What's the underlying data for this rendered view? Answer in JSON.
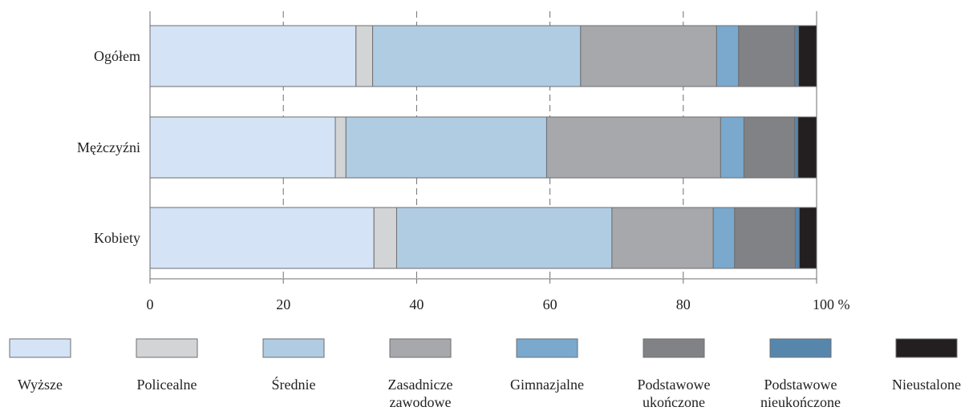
{
  "chart_data": {
    "type": "bar",
    "orientation": "horizontal",
    "stacked": true,
    "title": "",
    "xlabel": "",
    "ylabel": "",
    "xlim": [
      0,
      100
    ],
    "x_ticks": [
      0,
      20,
      40,
      60,
      80,
      100
    ],
    "x_tick_labels": [
      "0",
      "20",
      "40",
      "60",
      "80",
      "100 %"
    ],
    "categories": [
      "Ogółem",
      "Mężczyźni",
      "Kobiety"
    ],
    "series": [
      {
        "name": "Wyższe",
        "name_lines": [
          "Wyższe"
        ],
        "color": "#d4e3f5",
        "values": [
          30.9,
          27.8,
          33.6
        ]
      },
      {
        "name": "Policealne",
        "name_lines": [
          "Policealne"
        ],
        "color": "#d3d4d6",
        "values": [
          2.5,
          1.6,
          3.4
        ]
      },
      {
        "name": "Średnie",
        "name_lines": [
          "Średnie"
        ],
        "color": "#b0cce3",
        "values": [
          31.2,
          30.1,
          32.3
        ]
      },
      {
        "name": "Zasadnicze zawodowe",
        "name_lines": [
          "Zasadnicze",
          "zawodowe"
        ],
        "color": "#a7a8ab",
        "values": [
          20.4,
          26.1,
          15.2
        ]
      },
      {
        "name": "Gimnazjalne",
        "name_lines": [
          "Gimnazjalne"
        ],
        "color": "#7aa9cd",
        "values": [
          3.3,
          3.5,
          3.2
        ]
      },
      {
        "name": "Podstawowe ukończone",
        "name_lines": [
          "Podstawowe",
          "ukończone"
        ],
        "color": "#818285",
        "values": [
          8.4,
          7.6,
          9.1
        ]
      },
      {
        "name": "Podstawowe nieukończone",
        "name_lines": [
          "Podstawowe",
          "nieukończone"
        ],
        "color": "#5786ad",
        "values": [
          0.6,
          0.5,
          0.6
        ]
      },
      {
        "name": "Nieustalone",
        "name_lines": [
          "Nieustalone"
        ],
        "color": "#231f20",
        "values": [
          2.7,
          2.8,
          2.6
        ]
      }
    ],
    "grid": {
      "vertical": true,
      "style": "dashed"
    },
    "legend_position": "bottom"
  }
}
